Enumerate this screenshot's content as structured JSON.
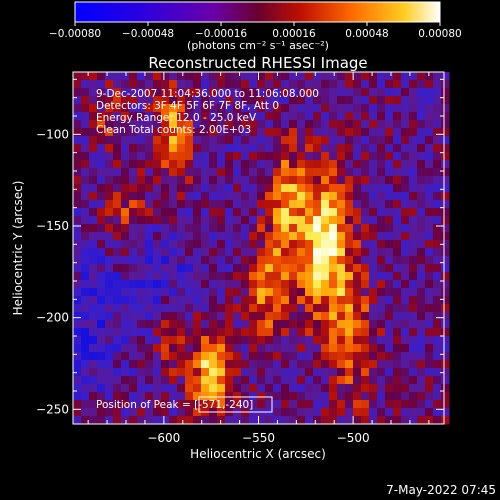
{
  "chart_data": {
    "type": "heatmap",
    "title": "Reconstructed RHESSI Image",
    "xlabel": "Heliocentric X (arcsec)",
    "ylabel": "Heliocentric Y (arcsec)",
    "xlim": [
      -648,
      -452
    ],
    "ylim": [
      -258,
      -66
    ],
    "x_ticks": [
      {
        "value": -600,
        "label": "−600"
      },
      {
        "value": -550,
        "label": "−550"
      },
      {
        "value": -500,
        "label": "−500"
      }
    ],
    "y_ticks": [
      {
        "value": -100,
        "label": "−100"
      },
      {
        "value": -150,
        "label": "−150"
      },
      {
        "value": -200,
        "label": "−200"
      },
      {
        "value": -250,
        "label": "−250"
      }
    ],
    "colorbar": {
      "min": -0.0008,
      "max": 0.0008,
      "tick_labels": [
        "−0.00080",
        "−0.00048",
        "−0.00016",
        "0.00016",
        "0.00048",
        "0.00080"
      ],
      "unit_label": "(photons cm⁻² s⁻¹ asec⁻²)"
    },
    "annotations": [
      " 9-Dec-2007 11:04:36.000 to 11:06:08.000",
      "Detectors: 3F 4F 5F 6F 7F 8F, Att 0",
      "Energy Range: 12.0 - 25.0 keV",
      "Clean     Total counts: 2.00E+03"
    ],
    "peak_label": "Position of Peak = [-571,-240]",
    "peak": {
      "x": -571,
      "y": -240
    },
    "timestamp": "7-May-2022 07:45"
  }
}
